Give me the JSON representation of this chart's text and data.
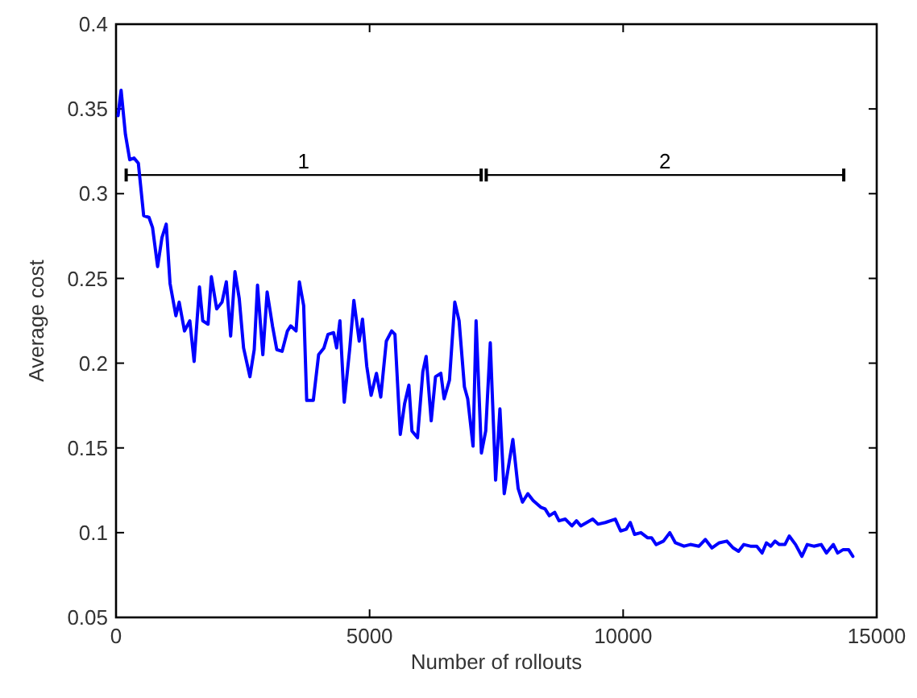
{
  "chart_data": {
    "type": "line",
    "xlabel": "Number of rollouts",
    "ylabel": "Average cost",
    "xlim": [
      0,
      15000
    ],
    "xticks": [
      0,
      5000,
      10000,
      15000
    ],
    "ylim": [
      0.05,
      0.4
    ],
    "yticks": [
      0.05,
      0.1,
      0.15,
      0.2,
      0.25,
      0.3,
      0.35,
      0.4
    ],
    "grid": false,
    "legend": false,
    "annotations": [
      {
        "text": "1",
        "x": 3700,
        "y": 0.311
      },
      {
        "text": "2",
        "x": 10825,
        "y": 0.311
      }
    ],
    "series": [
      {
        "color": "#000000",
        "line_style": "solid",
        "marker": "none",
        "x": [
          200,
          7200
        ],
        "values": [
          0.311,
          0.311
        ]
      },
      {
        "color": "#000000",
        "line_style": "solid",
        "marker": "none",
        "x": [
          7300,
          14350
        ],
        "values": [
          0.311,
          0.311
        ]
      },
      {
        "color": "#0000ff",
        "line_style": "solid",
        "marker": "none",
        "x": [
          40,
          100,
          185,
          270,
          355,
          440,
          545,
          650,
          720,
          820,
          905,
          990,
          1065,
          1180,
          1245,
          1350,
          1455,
          1540,
          1645,
          1710,
          1815,
          1880,
          1985,
          2090,
          2175,
          2260,
          2345,
          2430,
          2515,
          2640,
          2725,
          2790,
          2895,
          2980,
          3085,
          3170,
          3275,
          3380,
          3445,
          3550,
          3615,
          3700,
          3760,
          3890,
          3995,
          4100,
          4180,
          4290,
          4350,
          4415,
          4500,
          4610,
          4690,
          4795,
          4860,
          4945,
          5030,
          5135,
          5220,
          5330,
          5435,
          5500,
          5605,
          5690,
          5775,
          5835,
          5945,
          6050,
          6115,
          6215,
          6300,
          6405,
          6470,
          6575,
          6680,
          6765,
          6870,
          6935,
          7040,
          7100,
          7205,
          7290,
          7380,
          7485,
          7570,
          7655,
          7760,
          7825,
          7930,
          8015,
          8120,
          8225,
          8375,
          8460,
          8545,
          8650,
          8735,
          8860,
          8990,
          9080,
          9165,
          9400,
          9505,
          9650,
          9845,
          9950,
          10060,
          10140,
          10225,
          10350,
          10480,
          10560,
          10650,
          10795,
          10920,
          11030,
          11200,
          11325,
          11495,
          11620,
          11750,
          11895,
          12045,
          12170,
          12275,
          12380,
          12510,
          12635,
          12740,
          12825,
          12910,
          12995,
          13080,
          13190,
          13275,
          13400,
          13525,
          13630,
          13760,
          13905,
          14010,
          14145,
          14230,
          14340,
          14445,
          14530
        ],
        "values": [
          0.346,
          0.361,
          0.335,
          0.32,
          0.321,
          0.318,
          0.287,
          0.286,
          0.28,
          0.257,
          0.274,
          0.282,
          0.247,
          0.228,
          0.236,
          0.219,
          0.225,
          0.201,
          0.245,
          0.225,
          0.223,
          0.251,
          0.232,
          0.236,
          0.248,
          0.216,
          0.254,
          0.238,
          0.209,
          0.192,
          0.208,
          0.246,
          0.205,
          0.242,
          0.222,
          0.208,
          0.207,
          0.219,
          0.222,
          0.219,
          0.248,
          0.234,
          0.178,
          0.178,
          0.205,
          0.209,
          0.217,
          0.218,
          0.209,
          0.225,
          0.177,
          0.209,
          0.237,
          0.213,
          0.226,
          0.198,
          0.181,
          0.194,
          0.18,
          0.213,
          0.219,
          0.217,
          0.158,
          0.176,
          0.187,
          0.16,
          0.156,
          0.195,
          0.204,
          0.166,
          0.192,
          0.194,
          0.179,
          0.19,
          0.236,
          0.225,
          0.186,
          0.179,
          0.151,
          0.225,
          0.147,
          0.16,
          0.212,
          0.131,
          0.173,
          0.123,
          0.143,
          0.155,
          0.126,
          0.118,
          0.123,
          0.119,
          0.115,
          0.114,
          0.11,
          0.112,
          0.107,
          0.108,
          0.104,
          0.107,
          0.104,
          0.108,
          0.105,
          0.106,
          0.108,
          0.101,
          0.102,
          0.106,
          0.099,
          0.1,
          0.097,
          0.097,
          0.093,
          0.095,
          0.1,
          0.094,
          0.092,
          0.093,
          0.092,
          0.096,
          0.091,
          0.094,
          0.095,
          0.091,
          0.089,
          0.093,
          0.092,
          0.092,
          0.088,
          0.094,
          0.092,
          0.095,
          0.093,
          0.093,
          0.098,
          0.093,
          0.086,
          0.093,
          0.092,
          0.093,
          0.088,
          0.093,
          0.088,
          0.09,
          0.09,
          0.086
        ]
      }
    ]
  }
}
